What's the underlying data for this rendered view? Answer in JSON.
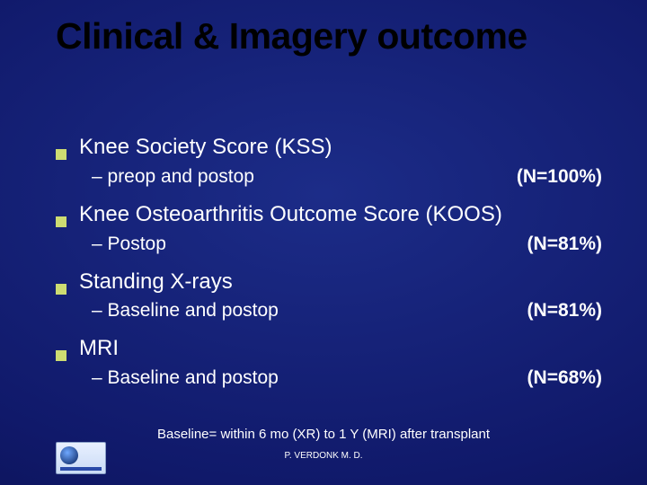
{
  "colors": {
    "background_center": "#1c2c88",
    "background_mid": "#10196a",
    "background_outer": "#05093c",
    "title_color": "#000000",
    "body_text": "#ffffff",
    "bullet_square": "#cddc72"
  },
  "typography": {
    "title_fontsize": 41,
    "title_weight": 900,
    "main_fontsize": 24,
    "sub_fontsize": 21,
    "footnote_fontsize": 15,
    "author_fontsize": 10,
    "family": "Verdana"
  },
  "title": "Clinical & Imagery outcome",
  "items": [
    {
      "label": "Knee Society Score (KSS)",
      "sub": "– preop and postop",
      "n": "(N=100%)"
    },
    {
      "label": "Knee Osteoarthritis Outcome Score (KOOS)",
      "sub": "– Postop",
      "n": "(N=81%)"
    },
    {
      "label": "Standing X-rays",
      "sub": "– Baseline and postop",
      "n": "(N=81%)"
    },
    {
      "label": "MRI",
      "sub": "– Baseline and postop",
      "n": "(N=68%)"
    }
  ],
  "footnote": "Baseline= within 6 mo (XR) to 1 Y (MRI) after transplant",
  "author": "P. VERDONK M. D."
}
